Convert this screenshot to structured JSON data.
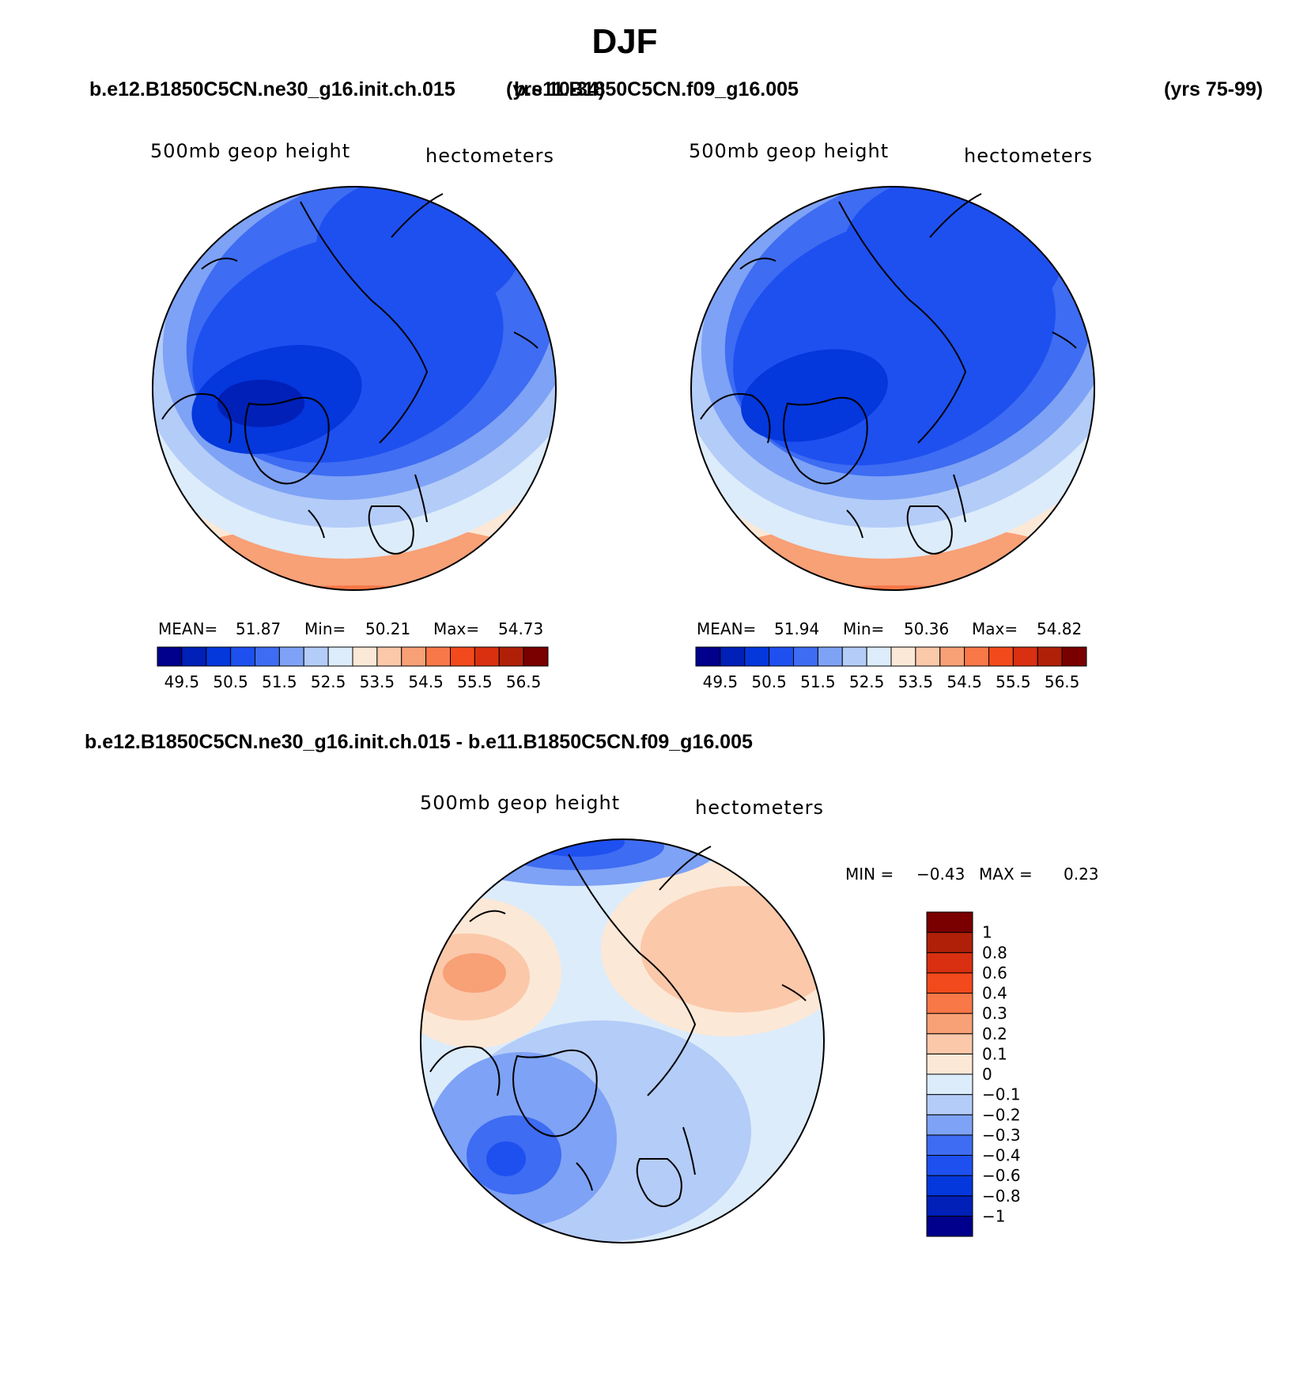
{
  "title": "DJF",
  "case1": {
    "name": "b.e12.B1850C5CN.ne30_g16.init.ch.015",
    "years": "(yrs 10-34)"
  },
  "case2": {
    "name": "b.e11.B1850C5CN.f09_g16.005",
    "years": "(yrs 75-99)"
  },
  "diff_title": "b.e12.B1850C5CN.ne30_g16.init.ch.015 - b.e11.B1850C5CN.f09_g16.005",
  "panels": [
    {
      "variable": "500mb geop height",
      "units": "hectometers",
      "stats": {
        "mean_label": "MEAN=",
        "mean": "51.87",
        "min_label": "Min=",
        "min": "50.21",
        "max_label": "Max=",
        "max": "54.73"
      }
    },
    {
      "variable": "500mb geop height",
      "units": "hectometers",
      "stats": {
        "mean_label": "MEAN=",
        "mean": "51.94",
        "min_label": "Min=",
        "min": "50.36",
        "max_label": "Max=",
        "max": "54.82"
      }
    },
    {
      "variable": "500mb geop height",
      "units": "hectometers",
      "stats": {
        "min_label": "MIN =",
        "min": "−0.43",
        "max_label": "MAX =",
        "max": "0.23"
      }
    }
  ],
  "colorbar_main": {
    "colors": [
      "#00008c",
      "#0020b8",
      "#0437dc",
      "#1e50f0",
      "#3e6cf2",
      "#7ea2f5",
      "#b4ccf8",
      "#dcecfb",
      "#fce8d6",
      "#fbc8aa",
      "#f8a076",
      "#f87848",
      "#f24a1c",
      "#d83010",
      "#b02008",
      "#7a0000"
    ],
    "tick_labels": [
      "49.5",
      "50.5",
      "51.5",
      "52.5",
      "53.5",
      "54.5",
      "55.5",
      "56.5"
    ]
  },
  "colorbar_diff": {
    "colors": [
      "#00008c",
      "#0020b8",
      "#0437dc",
      "#1e50f0",
      "#3e6cf2",
      "#7ea2f5",
      "#b4ccf8",
      "#dcecfb",
      "#fce8d6",
      "#fbc8aa",
      "#f8a076",
      "#f87848",
      "#f24a1c",
      "#d83010",
      "#b02008",
      "#7a0000"
    ],
    "tick_labels": [
      "1",
      "0.8",
      "0.6",
      "0.4",
      "0.3",
      "0.2",
      "0.1",
      "0",
      "−0.1",
      "−0.2",
      "−0.3",
      "−0.4",
      "−0.6",
      "−0.8",
      "−1"
    ]
  }
}
